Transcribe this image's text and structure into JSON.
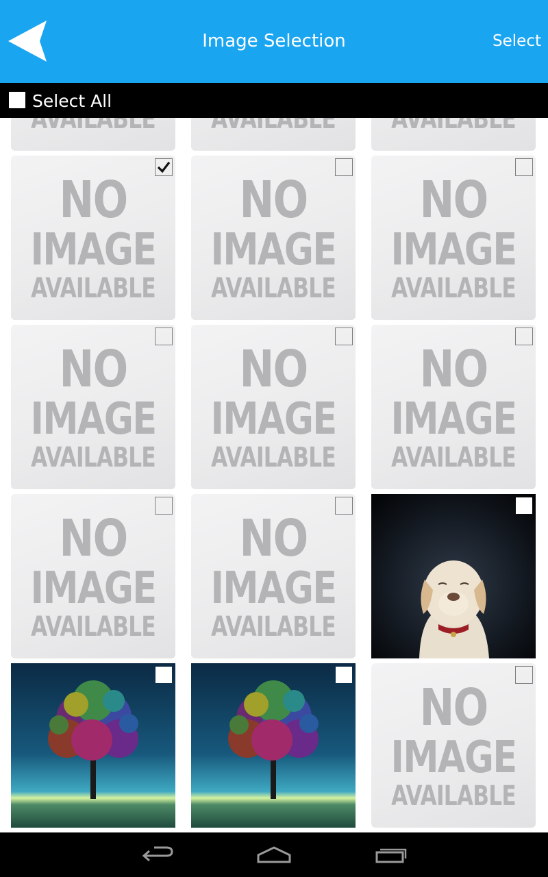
{
  "action_bar": {
    "title": "Image Selection",
    "select_label": "Select",
    "background_color": "#1aa5f1",
    "back_icon": "back-arrow-icon"
  },
  "select_all": {
    "label": "Select All",
    "checked": false
  },
  "placeholder": {
    "line1": "NO",
    "line2": "IMAGE",
    "line3": "AVAILABLE"
  },
  "grid": {
    "rows": [
      [
        "no-image",
        "no-image",
        "no-image"
      ],
      [
        "no-image",
        "no-image",
        "no-image"
      ],
      [
        "no-image",
        "no-image",
        "no-image"
      ],
      [
        "no-image",
        "no-image",
        "dog-photo"
      ],
      [
        "tree-photo",
        "tree-photo",
        "no-image"
      ]
    ],
    "checked": [
      [
        false,
        false,
        false
      ],
      [
        true,
        false,
        false
      ],
      [
        false,
        false,
        false
      ],
      [
        false,
        false,
        false
      ],
      [
        false,
        false,
        false
      ]
    ]
  },
  "nav_bar": {
    "back_icon": "nav-back-icon",
    "home_icon": "nav-home-icon",
    "recents_icon": "nav-recents-icon"
  }
}
